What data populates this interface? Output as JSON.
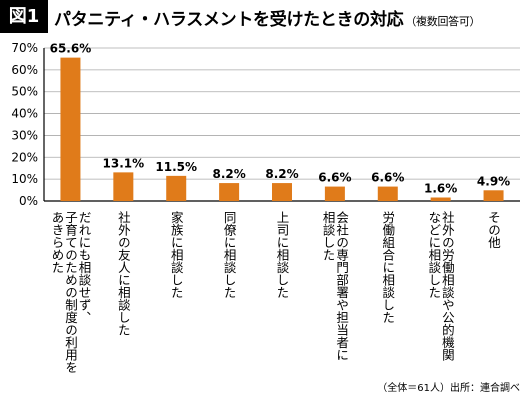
{
  "header": {
    "badge": "図1",
    "title": "パタニティ・ハラスメントを受けたときの対応",
    "subtitle": "（複数回答可）"
  },
  "footnote": "（全体＝61人）出所：連合調べ",
  "chart_data": {
    "type": "bar",
    "title": "パタニティ・ハラスメントを受けたときの対応",
    "subtitle": "（複数回答可）",
    "bar_color": "#e07b1a",
    "ylim": [
      0,
      70
    ],
    "yticks": [
      "0%",
      "10%",
      "20%",
      "30%",
      "40%",
      "50%",
      "60%",
      "70%"
    ],
    "grid": true,
    "categories": [
      [
        "だれにも相談せず、",
        "子育てのための制度の利用を",
        "あきらめた"
      ],
      [
        "社外の友人に相談した"
      ],
      [
        "家族に相談した"
      ],
      [
        "同僚に相談した"
      ],
      [
        "上司に相談した"
      ],
      [
        "会社の専門部署や担当者に",
        "相談した"
      ],
      [
        "労働組合に相談した"
      ],
      [
        "社外の労働相談や公的機関",
        "などに相談した"
      ],
      [
        "その他"
      ]
    ],
    "values": [
      65.6,
      13.1,
      11.5,
      8.2,
      8.2,
      6.6,
      6.6,
      1.6,
      4.9
    ],
    "value_labels": [
      "65.6%",
      "13.1%",
      "11.5%",
      "8.2%",
      "8.2%",
      "6.6%",
      "6.6%",
      "1.6%",
      "4.9%"
    ]
  }
}
